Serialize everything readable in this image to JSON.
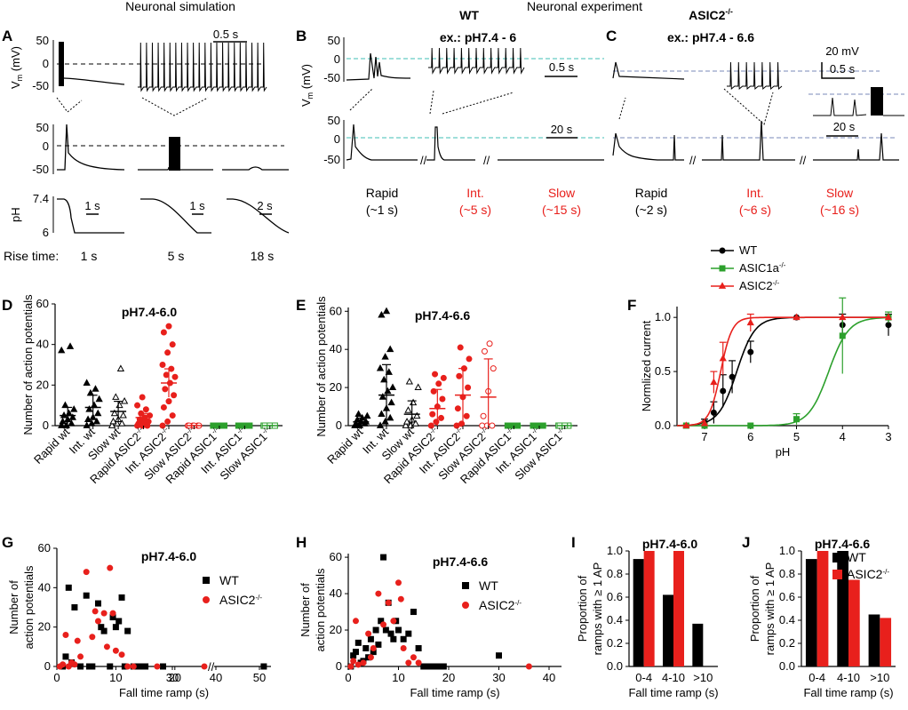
{
  "headers": {
    "simulation": "Neuronal simulation",
    "experiment": "Neuronal experiment"
  },
  "panel_labels": [
    "A",
    "B",
    "C",
    "D",
    "E",
    "F",
    "G",
    "H",
    "I",
    "J"
  ],
  "panelA": {
    "vm_ticks": [
      "50",
      "0",
      "-50"
    ],
    "vm_label": "V",
    "vm_sub": "m",
    "vm_unit": " (mV)",
    "ph_label": "pH",
    "ph_ticks": [
      "7.4",
      "6"
    ],
    "scale_top": "0.5 s",
    "scale_ph": [
      "1 s",
      "1 s",
      "2 s"
    ],
    "rise_label": "Rise time:",
    "rise_times": [
      "1 s",
      "5 s",
      "18 s"
    ]
  },
  "panelB": {
    "genotype": "WT",
    "example": "ex.: pH7.4 - 6",
    "scale_top": "0.5 s",
    "scale_bottom": "20 s",
    "ticks_top": [
      "50",
      "0",
      "-50"
    ],
    "ticks_bottom": [
      "50",
      "0",
      "-50"
    ],
    "vm_label": "V",
    "vm_sub": "m",
    "vm_unit": " (mV)",
    "categories": [
      {
        "name": "Rapid",
        "time": "(~1 s)",
        "color": "#000000"
      },
      {
        "name": "Int.",
        "time": "(~5 s)",
        "color": "#e8201c"
      },
      {
        "name": "Slow",
        "time": "(~15 s)",
        "color": "#e8201c"
      }
    ]
  },
  "panelC": {
    "genotype": "ASIC2",
    "genotype_sup": "-/-",
    "example": "ex.: pH7.4 - 6.6",
    "scale_mv": "20 mV",
    "scale_top": "0.5 s",
    "scale_bottom": "20 s",
    "categories": [
      {
        "name": "Rapid",
        "time": "(~2 s)",
        "color": "#000000"
      },
      {
        "name": "Int.",
        "time": "(~6 s)",
        "color": "#e8201c"
      },
      {
        "name": "Slow",
        "time": "(~16 s)",
        "color": "#e8201c"
      }
    ]
  },
  "scatterD": {
    "title": "pH7.4-6.0",
    "ylabel": "Number of action potentials",
    "yticks": [
      "0",
      "20",
      "40",
      "60"
    ],
    "categories": [
      "Rapid wt",
      "Int. wt",
      "Slow wt",
      "Rapid ASIC2",
      "Int. ASIC2",
      "Slow ASIC2",
      "Rapid ASIC1",
      "Int. ASIC1",
      "Slow ASIC1"
    ],
    "cat_sups": [
      "",
      "",
      "",
      "-/-",
      "-/-",
      "-/-",
      "-/-",
      "-/-",
      "-/-"
    ],
    "colors": [
      "#000000",
      "#000000",
      "#000000",
      "#e8201c",
      "#e8201c",
      "#e8201c",
      "#2ca02c",
      "#2ca02c",
      "#2ca02c"
    ],
    "means": [
      5,
      9,
      7,
      4,
      21,
      0,
      0,
      0,
      0
    ],
    "sems": [
      4,
      6,
      5,
      2,
      7,
      0,
      0,
      0,
      0
    ],
    "points": [
      [
        0,
        0,
        1,
        2,
        3,
        4,
        5,
        6,
        8,
        10,
        39,
        37
      ],
      [
        0,
        1,
        2,
        3,
        4,
        6,
        8,
        10,
        13,
        16,
        18,
        21
      ],
      [
        0,
        1,
        1,
        2,
        3,
        5,
        6,
        10,
        12,
        14,
        28
      ],
      [
        0,
        0,
        0,
        1,
        2,
        2,
        3,
        4,
        5,
        6,
        8,
        10,
        14
      ],
      [
        0,
        2,
        5,
        9,
        12,
        15,
        18,
        21,
        24,
        25,
        28,
        30,
        36,
        40,
        46,
        49
      ],
      [
        0,
        0,
        0,
        0,
        0,
        0
      ],
      [
        0,
        0,
        0,
        0,
        0,
        0
      ],
      [
        0,
        0,
        0,
        0,
        0,
        0
      ],
      [
        0,
        0,
        0,
        0,
        0,
        0
      ]
    ]
  },
  "scatterE": {
    "title": "pH7.4-6.6",
    "ylabel": "Number of action potentials",
    "yticks": [
      "0",
      "20",
      "40",
      "60"
    ],
    "categories": [
      "Rapid wt",
      "Int. wt",
      "Slow wt",
      "Rapid ASIC2",
      "Int. ASIC2",
      "Slow ASIC2",
      "Rapid ASIC1",
      "Int. ASIC1",
      "Slow ASIC1"
    ],
    "cat_sups": [
      "",
      "",
      "",
      "-/-",
      "-/-",
      "-/-",
      "-/-",
      "-/-",
      "-/-"
    ],
    "colors": [
      "#000000",
      "#000000",
      "#000000",
      "#e8201c",
      "#e8201c",
      "#e8201c",
      "#2ca02c",
      "#2ca02c",
      "#2ca02c"
    ],
    "means": [
      2,
      16,
      6,
      9,
      16,
      15,
      0,
      0,
      0
    ],
    "sems": [
      2,
      16,
      7,
      10,
      14,
      20,
      0,
      0,
      0
    ],
    "points": [
      [
        0,
        0,
        1,
        1,
        2,
        2,
        3,
        4,
        5,
        6
      ],
      [
        0,
        2,
        4,
        6,
        9,
        12,
        15,
        18,
        20,
        24,
        28,
        30,
        36,
        40,
        58,
        60
      ],
      [
        0,
        0,
        1,
        2,
        3,
        5,
        8,
        12,
        20,
        23
      ],
      [
        0,
        2,
        4,
        6,
        10,
        14,
        18,
        22,
        25,
        27
      ],
      [
        0,
        1,
        5,
        9,
        15,
        20,
        26,
        30,
        35,
        41
      ],
      [
        0,
        0,
        0,
        5,
        18,
        30,
        39,
        43
      ],
      [
        0,
        0,
        0,
        0,
        0
      ],
      [
        0,
        0,
        0,
        0,
        0
      ],
      [
        0,
        0,
        0,
        0,
        0
      ]
    ]
  },
  "chart_data": [
    {
      "type": "line",
      "panel": "F",
      "title": "",
      "xlabel": "pH",
      "ylabel": "Normlized current",
      "xlim": [
        7.6,
        3
      ],
      "ylim": [
        0,
        1.1
      ],
      "xticks": [
        "7",
        "6",
        "5",
        "4",
        "3"
      ],
      "yticks": [
        "0.0",
        "0.5",
        "1.0"
      ],
      "series": [
        {
          "name": "WT",
          "sup": "",
          "color": "#000000",
          "marker": "circle",
          "x": [
            7.4,
            7.0,
            6.8,
            6.6,
            6.4,
            6.0,
            5.0,
            4.0,
            3.0
          ],
          "y": [
            0.0,
            0.03,
            0.12,
            0.32,
            0.45,
            0.68,
            1.0,
            0.93,
            0.93
          ],
          "err": [
            0,
            0.03,
            0.1,
            0.15,
            0.15,
            0.1,
            0,
            0.1,
            0.1
          ],
          "pH50": 6.3,
          "hill": 2.2
        },
        {
          "name": "ASIC1a",
          "sup": "-/-",
          "color": "#2ca02c",
          "marker": "square",
          "x": [
            7.4,
            7.0,
            6.0,
            5.0,
            4.0,
            3.0
          ],
          "y": [
            0.0,
            0.0,
            0.0,
            0.06,
            0.83,
            1.0
          ],
          "err": [
            0,
            0,
            0,
            0.05,
            0.35,
            0.05
          ],
          "pH50": 4.3,
          "hill": 2.0
        },
        {
          "name": "ASIC2",
          "sup": "-/-",
          "color": "#e8201c",
          "marker": "triangle",
          "x": [
            7.4,
            7.0,
            6.8,
            6.6,
            6.0,
            5.0,
            4.0,
            3.0
          ],
          "y": [
            0.0,
            0.02,
            0.4,
            0.62,
            0.95,
            1.0,
            1.0,
            1.0
          ],
          "err": [
            0,
            0,
            0.1,
            0.15,
            0.08,
            0,
            0,
            0
          ],
          "pH50": 6.65,
          "hill": 3.5
        }
      ]
    },
    {
      "type": "scatter",
      "panel": "G",
      "title": "pH7.4-6.0",
      "xlabel": "Fall time ramp  (s)",
      "ylabel": [
        "Number of",
        "action potentials"
      ],
      "xticks": [
        "0",
        "10",
        "20",
        "30",
        "40",
        "50"
      ],
      "yticks": [
        "0",
        "20",
        "40",
        "60"
      ],
      "series": [
        {
          "name": "WT",
          "sup": "",
          "color": "#000000",
          "marker": "square",
          "points": [
            [
              1,
              0
            ],
            [
              1.5,
              5
            ],
            [
              2,
              40
            ],
            [
              2.5,
              2
            ],
            [
              3,
              30
            ],
            [
              4,
              0
            ],
            [
              5,
              36
            ],
            [
              5.5,
              0
            ],
            [
              6,
              0
            ],
            [
              7,
              32
            ],
            [
              7.5,
              20
            ],
            [
              8,
              18
            ],
            [
              9,
              0
            ],
            [
              9.5,
              25
            ],
            [
              10,
              20
            ],
            [
              10.5,
              23
            ],
            [
              11,
              35
            ],
            [
              11.5,
              0
            ],
            [
              12,
              18
            ],
            [
              13,
              0
            ],
            [
              14,
              0
            ],
            [
              15,
              0
            ],
            [
              18,
              0
            ],
            [
              51,
              0
            ]
          ]
        },
        {
          "name": "ASIC2",
          "sup": "-/-",
          "color": "#e8201c",
          "marker": "circle",
          "points": [
            [
              0.5,
              0
            ],
            [
              1,
              1
            ],
            [
              1.5,
              16
            ],
            [
              2,
              0
            ],
            [
              2.5,
              2
            ],
            [
              3,
              1
            ],
            [
              3.5,
              13
            ],
            [
              4,
              5
            ],
            [
              5,
              48
            ],
            [
              6,
              15
            ],
            [
              6.5,
              28
            ],
            [
              7,
              23
            ],
            [
              8,
              27
            ],
            [
              8.5,
              10
            ],
            [
              9,
              50
            ],
            [
              9.5,
              27
            ],
            [
              10,
              8
            ],
            [
              11,
              6
            ],
            [
              12,
              0
            ],
            [
              13,
              0
            ],
            [
              17,
              0
            ],
            [
              25,
              0
            ]
          ]
        }
      ]
    },
    {
      "type": "scatter",
      "panel": "H",
      "title": "pH7.4-6.6",
      "xlabel": "Fall time ramp  (s)",
      "ylabel": [
        "Number of",
        "action potentials"
      ],
      "xticks": [
        "0",
        "10",
        "20",
        "30",
        "40"
      ],
      "yticks": [
        "0",
        "20",
        "40",
        "60"
      ],
      "series": [
        {
          "name": "WT",
          "sup": "",
          "color": "#000000",
          "marker": "square",
          "points": [
            [
              0.5,
              0
            ],
            [
              1,
              6
            ],
            [
              1.5,
              8
            ],
            [
              2,
              13
            ],
            [
              2.5,
              2
            ],
            [
              3,
              3
            ],
            [
              3.5,
              10
            ],
            [
              4,
              5
            ],
            [
              4.5,
              15
            ],
            [
              5,
              8
            ],
            [
              5.5,
              20
            ],
            [
              6,
              12
            ],
            [
              6.5,
              25
            ],
            [
              7,
              60
            ],
            [
              7.5,
              20
            ],
            [
              8,
              35
            ],
            [
              8.5,
              18
            ],
            [
              9,
              15
            ],
            [
              9.5,
              25
            ],
            [
              10,
              20
            ],
            [
              11,
              15
            ],
            [
              12,
              18
            ],
            [
              13,
              30
            ],
            [
              14,
              10
            ],
            [
              15,
              0
            ],
            [
              16,
              0
            ],
            [
              17,
              0
            ],
            [
              18,
              0
            ],
            [
              30,
              6
            ],
            [
              19,
              0
            ]
          ]
        },
        {
          "name": "ASIC2",
          "sup": "-/-",
          "color": "#e8201c",
          "marker": "circle",
          "points": [
            [
              0.5,
              0
            ],
            [
              1,
              3
            ],
            [
              1.5,
              25
            ],
            [
              2,
              1
            ],
            [
              3,
              2
            ],
            [
              4,
              18
            ],
            [
              4.5,
              5
            ],
            [
              5,
              10
            ],
            [
              6,
              40
            ],
            [
              7,
              23
            ],
            [
              8,
              35
            ],
            [
              9,
              25
            ],
            [
              10,
              46
            ],
            [
              10.5,
              37
            ],
            [
              11,
              10
            ],
            [
              12,
              2
            ],
            [
              13,
              5
            ],
            [
              14,
              2
            ],
            [
              36,
              0
            ]
          ]
        }
      ]
    },
    {
      "type": "bar",
      "panel": "I",
      "title": "pH7.4-6.0",
      "xlabel": "Fall time ramp (s)",
      "ylabel": [
        "Proportion of",
        "ramps with ≥ 1 AP"
      ],
      "categories": [
        "0-4",
        "4-10",
        ">10"
      ],
      "yticks": [
        "0.0",
        "0.2",
        "0.4",
        "0.6",
        "0.8",
        "1.0"
      ],
      "ylim": [
        0,
        1
      ],
      "series": [
        {
          "name": "WT",
          "color": "#000000",
          "values": [
            0.93,
            0.62,
            0.37
          ]
        },
        {
          "name": "ASIC2",
          "color": "#e8201c",
          "values": [
            1.0,
            1.0,
            0.0
          ]
        }
      ]
    },
    {
      "type": "bar",
      "panel": "J",
      "title": "pH7.4-6.6",
      "xlabel": "Fall time ramp (s)",
      "ylabel": [
        "Proportion of",
        "ramps with ≥ 1 AP"
      ],
      "categories": [
        "0-4",
        "4-10",
        ">10"
      ],
      "yticks": [
        "0.0",
        "0.2",
        "0.4",
        "0.6",
        "0.8",
        "1.0"
      ],
      "ylim": [
        0,
        1
      ],
      "legend": [
        {
          "name": "WT",
          "sup": ""
        },
        {
          "name": "ASIC2",
          "sup": "-/-"
        }
      ],
      "series": [
        {
          "name": "WT",
          "color": "#000000",
          "values": [
            0.93,
            1.0,
            0.45
          ]
        },
        {
          "name": "ASIC2",
          "color": "#e8201c",
          "values": [
            1.0,
            0.75,
            0.42
          ]
        }
      ]
    }
  ]
}
